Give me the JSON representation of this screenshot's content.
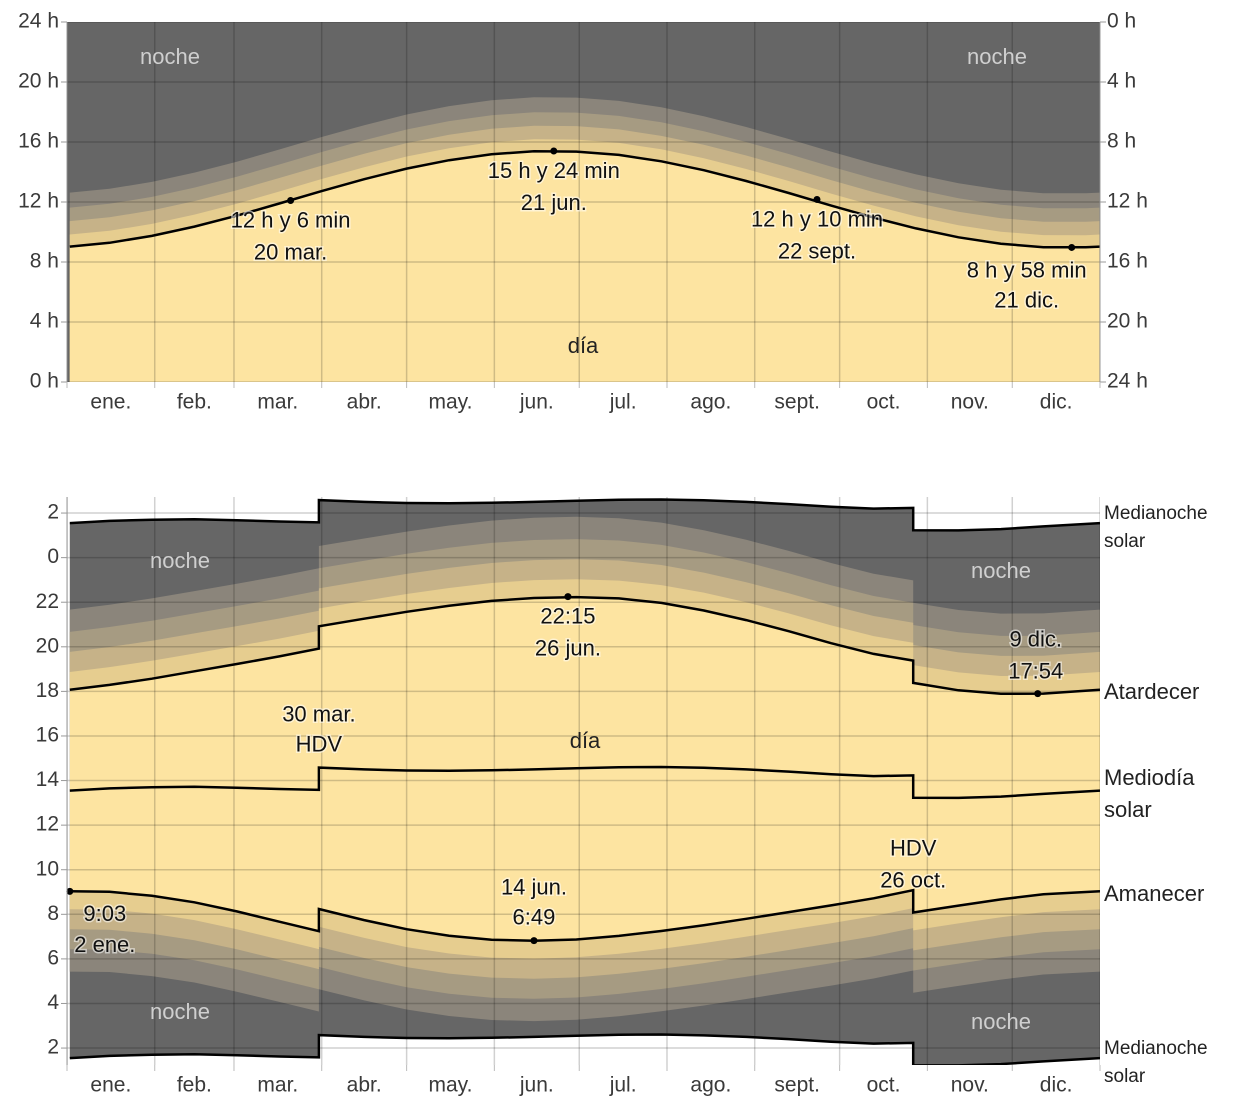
{
  "chart_data": [
    {
      "type": "area",
      "x": [
        1,
        15,
        30,
        45,
        60,
        75,
        90,
        105,
        120,
        135,
        150,
        165,
        180,
        195,
        210,
        225,
        240,
        255,
        270,
        285,
        300,
        315,
        330,
        345,
        360,
        365
      ],
      "values": [
        9.03,
        9.28,
        9.74,
        10.36,
        11.09,
        11.9,
        12.73,
        13.52,
        14.23,
        14.79,
        15.19,
        15.38,
        15.36,
        15.14,
        14.71,
        14.12,
        13.4,
        12.6,
        11.76,
        10.96,
        10.24,
        9.65,
        9.22,
        8.99,
        8.98,
        9.03
      ],
      "color": "#000000",
      "day_color": "#fde4a1",
      "night_color": "#666666",
      "xlim": [
        0,
        365
      ],
      "xticks": [
        0,
        31,
        59,
        90,
        120,
        151,
        181,
        212,
        243,
        273,
        304,
        334,
        365
      ],
      "xtick_labels": [
        "ene.",
        "feb.",
        "mar.",
        "abr.",
        "may.",
        "jun.",
        "jul.",
        "ago.",
        "sept.",
        "oct.",
        "nov.",
        "dic."
      ],
      "ylim": [
        0,
        24
      ],
      "yticks": [
        {
          "value": 0,
          "label": "0 h"
        },
        {
          "value": 4,
          "label": "4 h"
        },
        {
          "value": 8,
          "label": "8 h"
        },
        {
          "value": 12,
          "label": "12 h"
        },
        {
          "value": 16,
          "label": "16 h"
        },
        {
          "value": 20,
          "label": "20 h"
        },
        {
          "value": 24,
          "label": "24 h"
        }
      ],
      "y2lim": [
        24,
        0
      ],
      "y2ticks": [
        {
          "value": 0,
          "label": "0 h"
        },
        {
          "value": 4,
          "label": "4 h"
        },
        {
          "value": 8,
          "label": "8 h"
        },
        {
          "value": 12,
          "label": "12 h"
        },
        {
          "value": 16,
          "label": "16 h"
        },
        {
          "value": 20,
          "label": "20 h"
        },
        {
          "value": 24,
          "label": "24 h"
        }
      ],
      "grid": true,
      "region_labels": [
        "noche",
        "noche",
        "día"
      ],
      "annotations": [
        {
          "x": 79,
          "y": 12.1,
          "text": [
            "12 h y 6 min",
            "20 mar."
          ],
          "marker": true
        },
        {
          "x": 172,
          "y": 15.4,
          "text": [
            "15 h y 24 min",
            "21 jun."
          ],
          "marker": true
        },
        {
          "x": 265,
          "y": 12.17,
          "text": [
            "12 h y 10 min",
            "22 sept."
          ],
          "marker": true
        },
        {
          "x": 355,
          "y": 8.97,
          "text": [
            "8 h y 58 min",
            "21 dic."
          ],
          "marker": true
        }
      ]
    },
    {
      "type": "line",
      "x": [
        1,
        15,
        30,
        45,
        60,
        75,
        89,
        89,
        105,
        120,
        135,
        150,
        165,
        180,
        195,
        210,
        225,
        240,
        255,
        270,
        285,
        299,
        299,
        315,
        330,
        345,
        365
      ],
      "series": [
        {
          "name": "Medianoche solar",
          "color": "#000000",
          "values": [
            25.55,
            25.65,
            25.7,
            25.72,
            25.68,
            25.62,
            25.58,
            26.58,
            26.5,
            26.45,
            26.44,
            26.46,
            26.5,
            26.55,
            26.6,
            26.61,
            26.57,
            26.5,
            26.4,
            26.28,
            26.2,
            26.23,
            25.23,
            25.22,
            25.28,
            25.4,
            25.55
          ]
        },
        {
          "name": "Atardecer",
          "color": "#000000",
          "values": [
            18.07,
            18.29,
            18.57,
            18.9,
            19.23,
            19.57,
            19.92,
            20.92,
            21.26,
            21.57,
            21.84,
            22.06,
            22.19,
            22.23,
            22.17,
            21.97,
            21.63,
            21.2,
            20.7,
            20.16,
            19.68,
            19.38,
            18.38,
            18.05,
            17.89,
            17.9,
            18.07
          ]
        },
        {
          "name": "Mediodía solar",
          "color": "#000000",
          "values": [
            13.55,
            13.65,
            13.7,
            13.72,
            13.68,
            13.62,
            13.58,
            14.58,
            14.5,
            14.45,
            14.44,
            14.46,
            14.5,
            14.55,
            14.6,
            14.61,
            14.57,
            14.5,
            14.4,
            14.28,
            14.2,
            14.23,
            13.23,
            13.22,
            13.28,
            13.4,
            13.55
          ]
        },
        {
          "name": "Amanecer",
          "color": "#000000",
          "values": [
            9.03,
            9.01,
            8.83,
            8.54,
            8.13,
            7.67,
            7.24,
            8.24,
            7.74,
            7.33,
            7.04,
            6.86,
            6.81,
            6.87,
            7.03,
            7.25,
            7.51,
            7.8,
            8.1,
            8.4,
            8.72,
            9.08,
            8.08,
            8.39,
            8.67,
            8.9,
            9.03
          ]
        },
        {
          "name": "Medianoche solar",
          "color": "#000000",
          "values": [
            1.55,
            1.65,
            1.7,
            1.72,
            1.68,
            1.62,
            1.58,
            2.58,
            2.5,
            2.45,
            2.44,
            2.46,
            2.5,
            2.55,
            2.6,
            2.61,
            2.57,
            2.5,
            2.4,
            2.28,
            2.2,
            2.23,
            1.23,
            1.22,
            1.28,
            1.4,
            1.55
          ]
        }
      ],
      "day_color": "#fde4a1",
      "night_color": "#666666",
      "xlim": [
        0,
        365
      ],
      "xticks": [
        0,
        31,
        59,
        90,
        120,
        151,
        181,
        212,
        243,
        273,
        304,
        334,
        365
      ],
      "xtick_labels": [
        "ene.",
        "feb.",
        "mar.",
        "abr.",
        "may.",
        "jun.",
        "jul.",
        "ago.",
        "sept.",
        "oct.",
        "nov.",
        "dic."
      ],
      "ylim": [
        1.24,
        26.72
      ],
      "yticks": [
        2,
        4,
        6,
        8,
        10,
        12,
        14,
        16,
        18,
        20,
        22,
        {
          "value": 24,
          "label": "0"
        },
        {
          "value": 26,
          "label": "2"
        }
      ],
      "grid": true,
      "region_labels": [
        "noche",
        "noche",
        "noche",
        "noche",
        "día"
      ],
      "annotations": [
        {
          "x": 177,
          "y": 22.25,
          "text": [
            "22:15",
            "26 jun."
          ],
          "marker": true
        },
        {
          "x": 343,
          "y": 17.9,
          "text": [
            "9 dic.",
            "17:54"
          ],
          "marker": true
        },
        {
          "x": 89,
          "y": 14.58,
          "text": [
            "30 mar.",
            "HDV"
          ],
          "marker": false
        },
        {
          "x": 299,
          "y": 13.23,
          "text": [
            "HDV",
            "26 oct."
          ],
          "marker": false
        },
        {
          "x": 165,
          "y": 6.82,
          "text": [
            "14 jun.",
            "6:49"
          ],
          "marker": true
        },
        {
          "x": 1,
          "y": 9.03,
          "text": [
            "9:03",
            "2 ene."
          ],
          "marker": true
        }
      ]
    }
  ]
}
